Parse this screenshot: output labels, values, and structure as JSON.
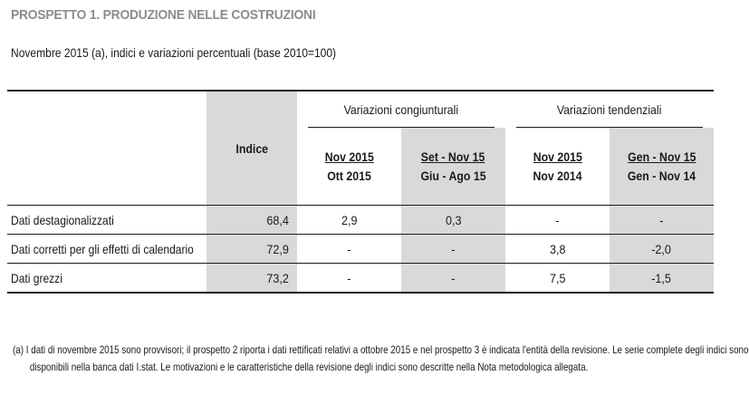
{
  "title": "PROSPETTO 1. PRODUZIONE NELLE COSTRUZIONI",
  "subtitle": "Novembre 2015 (a), indici e variazioni percentuali (base 2010=100)",
  "table": {
    "index_header": "Indice",
    "group_congiunturali": "Variazioni congiunturali",
    "group_tendenziali": "Variazioni tendenziali",
    "columns": [
      {
        "line1": "Nov 2015",
        "line2": "Ott 2015"
      },
      {
        "line1": "Set - Nov 15",
        "line2": "Giu - Ago 15"
      },
      {
        "line1": "Nov 2015",
        "line2": "Nov 2014"
      },
      {
        "line1": "Gen - Nov 15",
        "line2": "Gen - Nov 14"
      }
    ],
    "rows": [
      {
        "label": "Dati destagionalizzati",
        "indice": "68,4",
        "cong_nov": "2,9",
        "cong_set": "0,3",
        "tend_nov": "-",
        "tend_gen": "-"
      },
      {
        "label": "Dati corretti per gli effetti di calendario",
        "indice": "72,9",
        "cong_nov": "-",
        "cong_set": "-",
        "tend_nov": "3,8",
        "tend_gen": "-2,0"
      },
      {
        "label": "Dati grezzi",
        "indice": "73,2",
        "cong_nov": "-",
        "cong_set": "-",
        "tend_nov": "7,5",
        "tend_gen": "-1,5"
      }
    ]
  },
  "footnote": {
    "line1": "(a)  I dati di novembre 2015 sono provvisori; il prospetto 2 riporta i dati rettificati relativi a ottobre  2015  e nel prospetto 3 è indicata l'entità della revisione. Le serie complete degli indici sono",
    "line2": "disponibili nella banca dati I.stat. Le motivazioni e le caratteristiche della revisione degli indici sono descritte nella Nota metodologica allegata."
  },
  "colors": {
    "title_gray": "#8c8c8c",
    "shaded_column": "#d9d9d9",
    "text": "#1a1a1a"
  }
}
